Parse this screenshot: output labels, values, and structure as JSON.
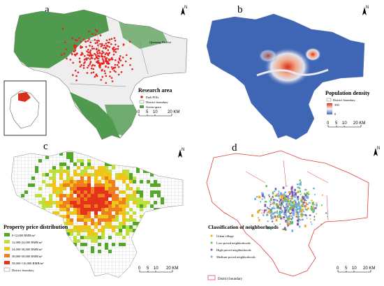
{
  "panels": {
    "a": {
      "label": "a",
      "legend_title": "Research area",
      "legend_items": [
        "Park POIs",
        "District boundary",
        "Green space"
      ],
      "district_label": "Qiantang District",
      "scale": [
        "0",
        "5",
        "10",
        "20 KM"
      ],
      "north": "N"
    },
    "b": {
      "label": "b",
      "legend_title": "Population density",
      "legend_items": [
        "District boundary",
        "390",
        "0"
      ],
      "scale": [
        "0",
        "5",
        "10",
        "20 KM"
      ],
      "north": "N"
    },
    "c": {
      "label": "c",
      "legend_title": "Property price distribution",
      "legend_items": [
        "0-12,000 RMB/m²",
        "12,000-24,000 RMB/m²",
        "24,000-38,000 RMB/m²",
        "38,000-58,000 RMB/m²",
        "58,000-116,000 RMB/m²",
        "District boundary"
      ],
      "scale": [
        "0",
        "5",
        "10",
        "20 KM"
      ],
      "north": "N"
    },
    "d": {
      "label": "d",
      "legend_title": "Classification of neighborhoods",
      "legend_items": [
        "Urban village",
        "Low-priced neighborhoods",
        "High-priced neighborhoods",
        "Medium-priced neighborhoods",
        "District boundary"
      ],
      "scale": [
        "0",
        "5",
        "10",
        "20 KM"
      ],
      "north": "N"
    }
  },
  "colors": {
    "green_space": "#4f9a4f",
    "park_poi": "#e8231f",
    "density_low": "#3f66b4",
    "density_high": "#d7301f",
    "price_classes": [
      "#53a829",
      "#bde03c",
      "#f0c419",
      "#f07d1e",
      "#e4321b"
    ],
    "district_boundary_d": "#e23b3b",
    "urban_village": "#f5a623",
    "low_priced": "#6abf45",
    "high_priced": "#8b4fb0",
    "medium_priced": "#6aaee0"
  }
}
